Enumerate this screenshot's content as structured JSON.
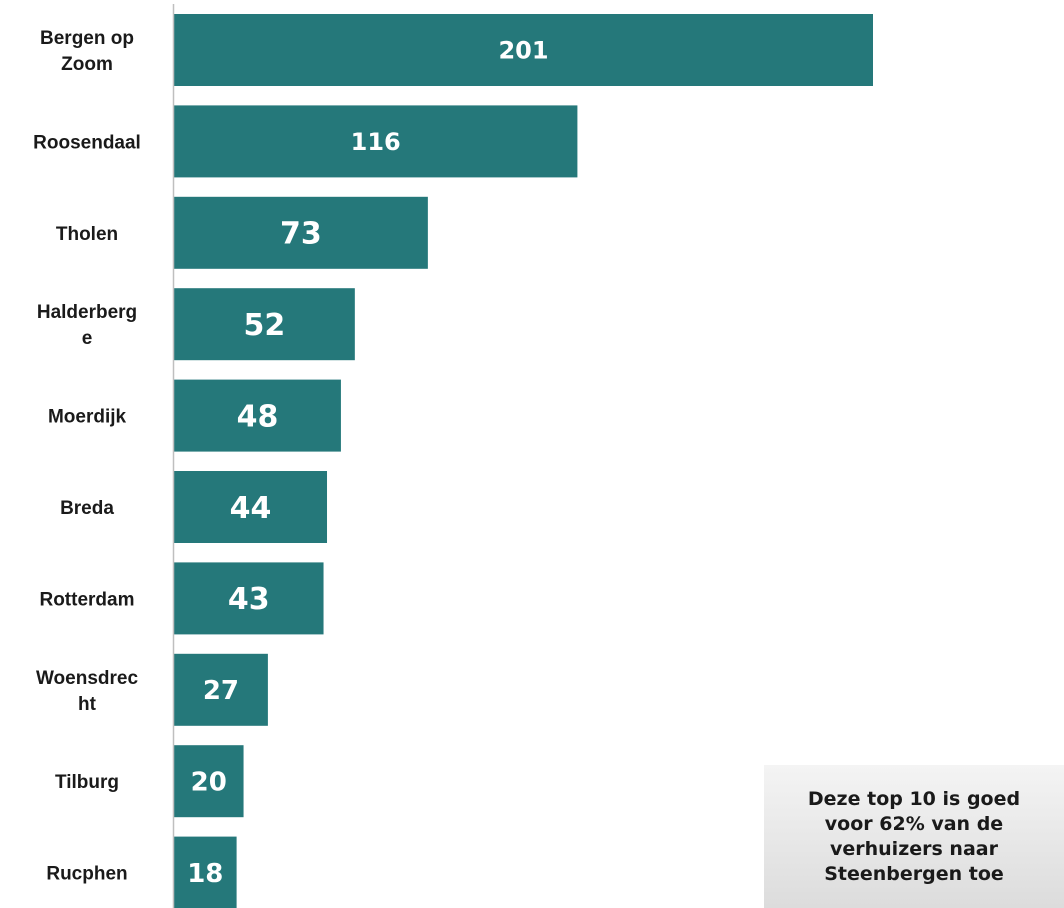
{
  "colors": {
    "bar": "#25787a",
    "axis": "#bfbfbf",
    "value_text": "#ffffff"
  },
  "chart_data": {
    "type": "bar",
    "orientation": "horizontal",
    "categories": [
      "Bergen op Zoom",
      "Roosendaal",
      "Tholen",
      "Halderberge",
      "Moerdijk",
      "Breda",
      "Rotterdam",
      "Woensdrecht",
      "Tilburg",
      "Rucphen"
    ],
    "category_display": [
      "Bergen op\nZoom",
      "Roosendaal",
      "Tholen",
      "Halderberg\ne",
      "Moerdijk",
      "Breda",
      "Rotterdam",
      "Woensdrec\nht",
      "Tilburg",
      "Rucphen"
    ],
    "values": [
      201,
      116,
      73,
      52,
      48,
      44,
      43,
      27,
      20,
      18
    ],
    "value_labels": [
      "201",
      "116",
      "73",
      "52",
      "48",
      "44",
      "43",
      "27",
      "20",
      "18"
    ],
    "data_labels": "inside-bar",
    "xlim": [
      0,
      201
    ],
    "grid": false,
    "legend": "none"
  },
  "note": {
    "text": "Deze top 10 is goed\nvoor 62% van de\nverhuizers naar\nSteenbergen toe"
  }
}
